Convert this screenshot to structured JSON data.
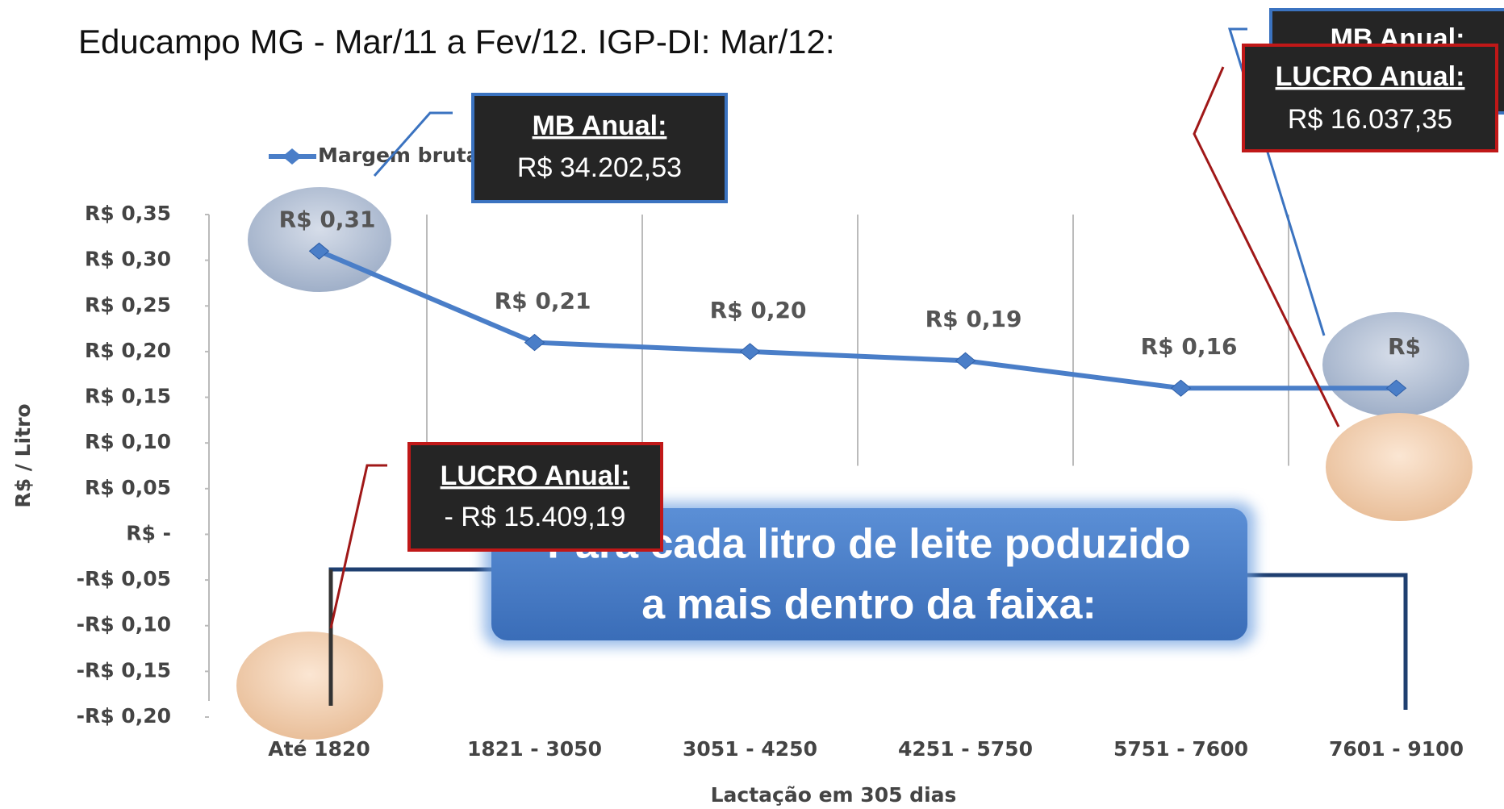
{
  "chart_data": {
    "type": "line",
    "title": "Educampo MG - Mar/11 a Fev/12. IGP-DI: Mar/12:",
    "x_label": "Lactação em 305 dias",
    "y_label": "R$ / Litro",
    "categories": [
      "Até 1820",
      "1821 - 3050",
      "3051 - 4250",
      "4251 - 5750",
      "5751 - 7600",
      "7601 - 9100"
    ],
    "series": [
      {
        "name": "Margem bruta unitária (R$/ano)",
        "color": "#4a7ec8",
        "values": [
          0.31,
          0.21,
          0.2,
          0.19,
          0.16,
          0.16
        ],
        "value_labels": [
          "R$ 0,31",
          "R$ 0,21",
          "R$ 0,20",
          "R$ 0,19",
          "R$ 0,16",
          "R$"
        ]
      }
    ],
    "ylim": [
      -0.2,
      0.35
    ],
    "yticks": [
      {
        "value": 0.35,
        "label": "R$ 0,35"
      },
      {
        "value": 0.3,
        "label": "R$ 0,30"
      },
      {
        "value": 0.25,
        "label": "R$ 0,25"
      },
      {
        "value": 0.2,
        "label": "R$ 0,20"
      },
      {
        "value": 0.15,
        "label": "R$ 0,15"
      },
      {
        "value": 0.1,
        "label": "R$ 0,10"
      },
      {
        "value": 0.05,
        "label": "R$ 0,05"
      },
      {
        "value": 0,
        "label": "R$ -"
      },
      {
        "value": -0.05,
        "label": "-R$ 0,05"
      },
      {
        "value": -0.1,
        "label": "-R$ 0,10"
      },
      {
        "value": -0.15,
        "label": "-R$ 0,15"
      },
      {
        "value": -0.2,
        "label": "-R$ 0,20"
      }
    ],
    "annotations": [
      {
        "heading": "MB Anual:",
        "text": "R$ 34.202,53"
      },
      {
        "heading": "LUCRO Anual:",
        "text": "- R$ 15.409,19"
      },
      {
        "heading": "MB Anual:"
      },
      {
        "heading": "LUCRO Anual:",
        "text": "R$ 16.037,35"
      }
    ],
    "callout": [
      "Para cada litro de leite poduzido",
      "a mais dentro da faixa:"
    ]
  }
}
